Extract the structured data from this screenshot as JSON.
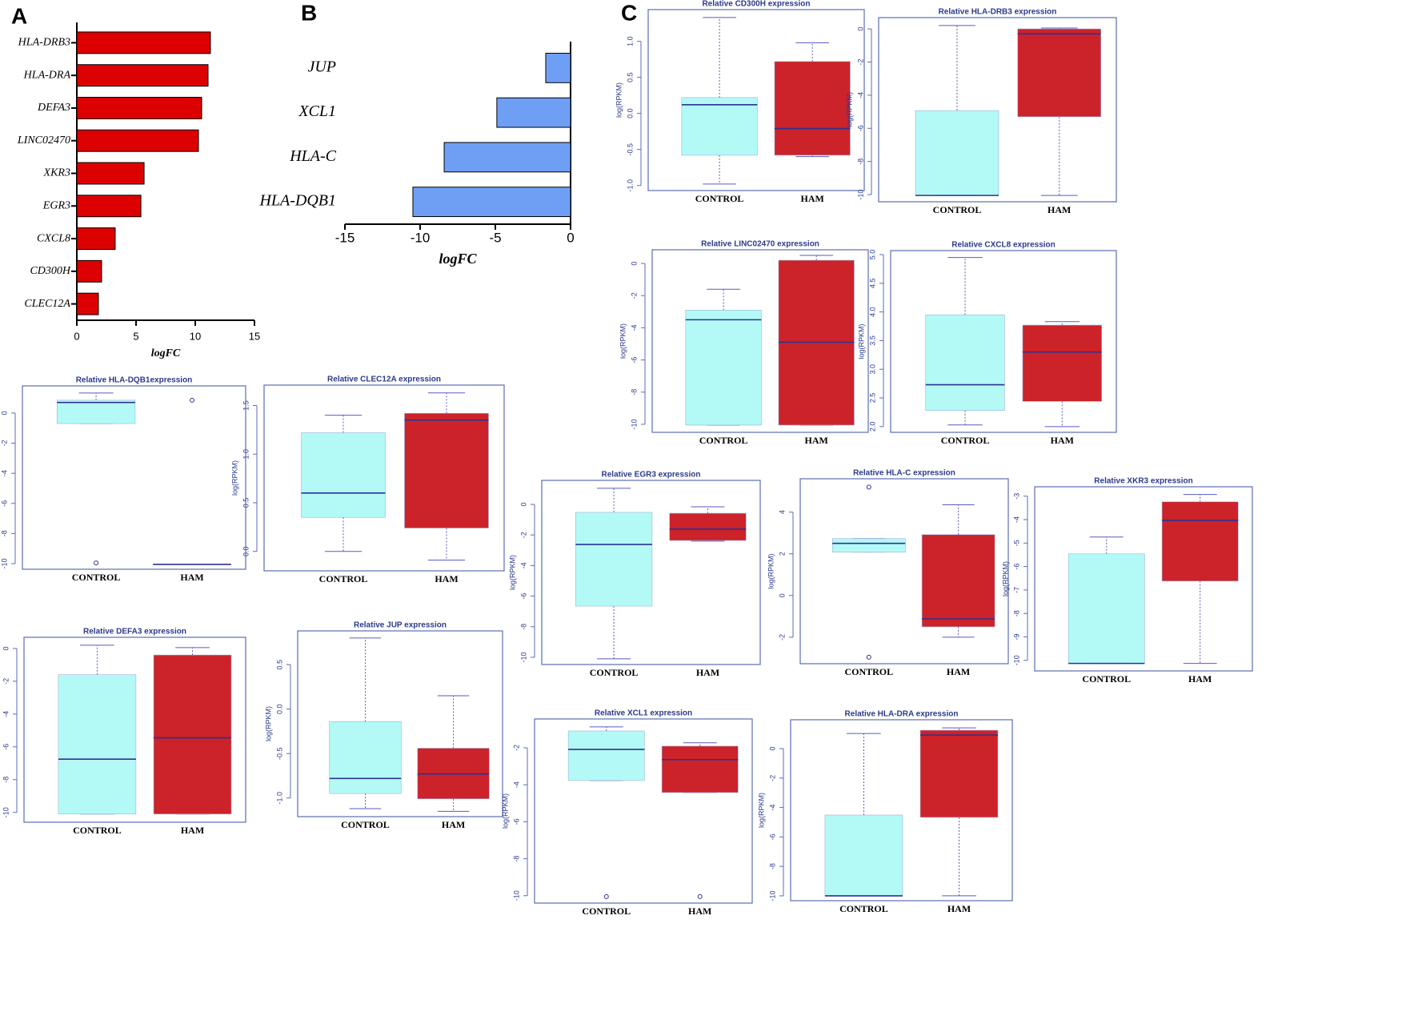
{
  "panel_labels": [
    "A",
    "B",
    "C"
  ],
  "chart_data": [
    {
      "type": "hbar",
      "categories": [
        "HLA-DRB3",
        "HLA-DRA",
        "DEFA3",
        "LINC02470",
        "XKR3",
        "EGR3",
        "CXCL8",
        "CD300H",
        "CLEC12A"
      ],
      "values": [
        11.28,
        11.08,
        10.54,
        10.27,
        5.68,
        5.41,
        3.24,
        2.09,
        1.82
      ],
      "color": "#dd0000",
      "xlim": [
        0,
        15
      ],
      "xticks": [
        0,
        5,
        10,
        15
      ],
      "xlabel": "logFC"
    },
    {
      "type": "hbar",
      "categories": [
        "JUP",
        "XCL1",
        "HLA-C",
        "HLA-DQB1"
      ],
      "values": [
        -1.65,
        -4.9,
        -8.4,
        -10.48
      ],
      "color": "#6f9ff5",
      "xlim": [
        -15,
        0
      ],
      "xticks": [
        -15,
        -10,
        -5,
        0
      ],
      "xlabel": "logFC"
    },
    {
      "type": "box",
      "title": "Relative CD300H expression",
      "ylabel": "log(RPKM)",
      "categories": [
        "CONTROL",
        "HAM"
      ],
      "ylim": [
        -1.07,
        1.44
      ],
      "yticks": [
        {
          "value": -1,
          "label": "-1.0"
        },
        -0.5,
        {
          "value": 0,
          "label": "0.0"
        },
        0.5,
        {
          "value": 1,
          "label": "1.0"
        }
      ],
      "boxes": [
        {
          "color": "#b3faf7",
          "low": -0.98,
          "q1": -0.58,
          "median": 0.12,
          "q3": 0.22,
          "high": 1.33
        },
        {
          "color": "#cc2229",
          "low": -0.6,
          "q1": -0.58,
          "median": -0.21,
          "q3": 0.72,
          "high": 0.98
        }
      ]
    },
    {
      "type": "box",
      "title": "Relative HLA-DRB3 expression",
      "ylabel": "log(RPKM)",
      "categories": [
        "CONTROL",
        "HAM"
      ],
      "ylim": [
        -10.43,
        0.68
      ],
      "yticks": [
        -10,
        -8,
        -6,
        -4,
        -2,
        0
      ],
      "boxes": [
        {
          "color": "#b3faf7",
          "low": -10.05,
          "q1": -10.05,
          "median": -10.05,
          "q3": -4.93,
          "high": 0.2
        },
        {
          "color": "#cc2229",
          "low": -10.05,
          "q1": -5.3,
          "median": -0.3,
          "q3": 0,
          "high": 0.05
        }
      ]
    },
    {
      "type": "box",
      "title": "Relative LINC02470 expression",
      "ylabel": "log(RPKM)",
      "categories": [
        "CONTROL",
        "HAM"
      ],
      "ylim": [
        -10.5,
        0.85
      ],
      "yticks": [
        -10,
        -8,
        -6,
        -4,
        -2,
        0
      ],
      "boxes": [
        {
          "color": "#b3faf7",
          "low": -10.05,
          "q1": -10.05,
          "median": -3.5,
          "q3": -2.9,
          "high": -1.6
        },
        {
          "color": "#cc2229",
          "low": -10.05,
          "q1": -10.05,
          "median": -4.9,
          "q3": 0.2,
          "high": 0.5
        }
      ]
    },
    {
      "type": "box",
      "title": "Relative CXCL8 expression",
      "ylabel": "log(RPKM)",
      "categories": [
        "CONTROL",
        "HAM"
      ],
      "ylim": [
        1.9,
        5.07
      ],
      "yticks": [
        {
          "value": 2,
          "label": "2.0"
        },
        2.5,
        {
          "value": 3,
          "label": "3.0"
        },
        3.5,
        {
          "value": 4,
          "label": "4.0"
        },
        4.5,
        {
          "value": 5,
          "label": "5.0"
        }
      ],
      "boxes": [
        {
          "color": "#b3faf7",
          "low": 2.03,
          "q1": 2.28,
          "median": 2.73,
          "q3": 3.95,
          "high": 4.95
        },
        {
          "color": "#cc2229",
          "low": 2.0,
          "q1": 2.44,
          "median": 3.3,
          "q3": 3.77,
          "high": 3.83
        }
      ]
    },
    {
      "type": "box",
      "title": "Relative HLA-DQB1expression",
      "ylabel": "log(RPKM)",
      "categories": [
        "CONTROL",
        "HAM"
      ],
      "ylim": [
        -10.37,
        1.8
      ],
      "yticks": [
        -10,
        -8,
        -6,
        -4,
        -2,
        0
      ],
      "boxes": [
        {
          "color": "#b3faf7",
          "low": -0.7,
          "q1": -0.7,
          "median": 0.7,
          "q3": 0.85,
          "high": 1.33,
          "outliers": [
            -9.95
          ]
        },
        {
          "color": "#cc2229",
          "low": -10.05,
          "q1": -10.05,
          "median": -10.05,
          "q3": -10.05,
          "high": -10.05,
          "outliers": [
            0.85
          ]
        }
      ]
    },
    {
      "type": "box",
      "title": "Relative CLEC12A expression",
      "ylabel": "log(RPKM)",
      "categories": [
        "CONTROL",
        "HAM"
      ],
      "ylim": [
        -0.2,
        1.71
      ],
      "yticks": [
        {
          "value": 0,
          "label": "0.0"
        },
        0.5,
        {
          "value": 1,
          "label": "1.0"
        },
        1.5
      ],
      "boxes": [
        {
          "color": "#b3faf7",
          "low": 0.0,
          "q1": 0.35,
          "median": 0.6,
          "q3": 1.22,
          "high": 1.4
        },
        {
          "color": "#cc2229",
          "low": -0.09,
          "q1": 0.24,
          "median": 1.35,
          "q3": 1.42,
          "high": 1.63
        }
      ]
    },
    {
      "type": "box",
      "title": "Relative DEFA3 expression",
      "ylabel": "log(RPKM)",
      "categories": [
        "CONTROL",
        "HAM"
      ],
      "ylim": [
        -10.6,
        0.68
      ],
      "yticks": [
        -10,
        -8,
        -6,
        -4,
        -2,
        0
      ],
      "boxes": [
        {
          "color": "#b3faf7",
          "low": -10.1,
          "q1": -10.1,
          "median": -6.75,
          "q3": -1.6,
          "high": 0.2
        },
        {
          "color": "#cc2229",
          "low": -10.1,
          "q1": -10.1,
          "median": -5.45,
          "q3": -0.4,
          "high": 0.05
        }
      ]
    },
    {
      "type": "box",
      "title": "Relative JUP expression",
      "ylabel": "log(RPKM)",
      "categories": [
        "CONTROL",
        "HAM"
      ],
      "ylim": [
        -1.21,
        0.88
      ],
      "yticks": [
        {
          "value": -1,
          "label": "-1.0"
        },
        -0.5,
        {
          "value": 0,
          "label": "0.0"
        },
        0.5
      ],
      "boxes": [
        {
          "color": "#b3faf7",
          "low": -1.12,
          "q1": -0.95,
          "median": -0.78,
          "q3": -0.14,
          "high": 0.8
        },
        {
          "color": "#cc2229",
          "low": -1.15,
          "q1": -1.01,
          "median": -0.73,
          "q3": -0.44,
          "high": 0.15
        }
      ]
    },
    {
      "type": "box",
      "title": "Relative EGR3 expression",
      "ylabel": "log(RPKM)",
      "categories": [
        "CONTROL",
        "HAM"
      ],
      "ylim": [
        -10.47,
        1.57
      ],
      "yticks": [
        -10,
        -8,
        -6,
        -4,
        -2,
        0
      ],
      "boxes": [
        {
          "color": "#b3faf7",
          "low": -10.1,
          "q1": -6.65,
          "median": -2.62,
          "q3": -0.52,
          "high": 1.05
        },
        {
          "color": "#cc2229",
          "low": -2.4,
          "q1": -2.36,
          "median": -1.62,
          "q3": -0.58,
          "high": -0.16
        }
      ]
    },
    {
      "type": "box",
      "title": "Relative HLA-C expression",
      "ylabel": "log(RPKM)",
      "categories": [
        "CONTROL",
        "HAM"
      ],
      "ylim": [
        -3.27,
        5.6
      ],
      "yticks": [
        -2,
        0,
        2,
        4
      ],
      "boxes": [
        {
          "color": "#b3faf7",
          "low": 2.08,
          "q1": 2.08,
          "median": 2.5,
          "q3": 2.73,
          "high": 2.73,
          "outliers": [
            5.2,
            -2.96
          ]
        },
        {
          "color": "#cc2229",
          "low": -2.0,
          "q1": -1.5,
          "median": -1.12,
          "q3": 2.92,
          "high": 4.35
        }
      ]
    },
    {
      "type": "box",
      "title": "Relative XKR3 expression",
      "ylabel": "log(RPKM)",
      "categories": [
        "CONTROL",
        "HAM"
      ],
      "ylim": [
        -10.45,
        -2.6
      ],
      "yticks": [
        -10,
        -9,
        -8,
        -7,
        -6,
        -5,
        -4,
        -3
      ],
      "boxes": [
        {
          "color": "#b3faf7",
          "low": -10.13,
          "q1": -10.13,
          "median": -10.13,
          "q3": -5.46,
          "high": -4.74
        },
        {
          "color": "#cc2229",
          "low": -10.13,
          "q1": -6.62,
          "median": -4.03,
          "q3": -3.24,
          "high": -2.93
        }
      ]
    },
    {
      "type": "box",
      "title": "Relative XCL1 expression",
      "ylabel": "log(RPKM)",
      "categories": [
        "CONTROL",
        "HAM"
      ],
      "ylim": [
        -10.4,
        -0.44
      ],
      "yticks": [
        -10,
        -8,
        -6,
        -4,
        -2
      ],
      "boxes": [
        {
          "color": "#b3faf7",
          "low": -3.77,
          "q1": -3.77,
          "median": -2.09,
          "q3": -1.09,
          "high": -0.87,
          "outliers": [
            -10.05
          ]
        },
        {
          "color": "#cc2229",
          "low": -4.42,
          "q1": -4.42,
          "median": -2.64,
          "q3": -1.91,
          "high": -1.73,
          "outliers": [
            -10.05
          ]
        }
      ]
    },
    {
      "type": "box",
      "title": "Relative HLA-DRA expression",
      "ylabel": "log(RPKM)",
      "categories": [
        "CONTROL",
        "HAM"
      ],
      "ylim": [
        -10.33,
        1.96
      ],
      "yticks": [
        -10,
        -8,
        -6,
        -4,
        -2,
        0
      ],
      "boxes": [
        {
          "color": "#b3faf7",
          "low": -10.0,
          "q1": -10.0,
          "median": -10.0,
          "q3": -4.51,
          "high": 1.03
        },
        {
          "color": "#cc2229",
          "low": -10.0,
          "q1": -4.67,
          "median": 0.92,
          "q3": 1.25,
          "high": 1.41
        }
      ]
    }
  ]
}
